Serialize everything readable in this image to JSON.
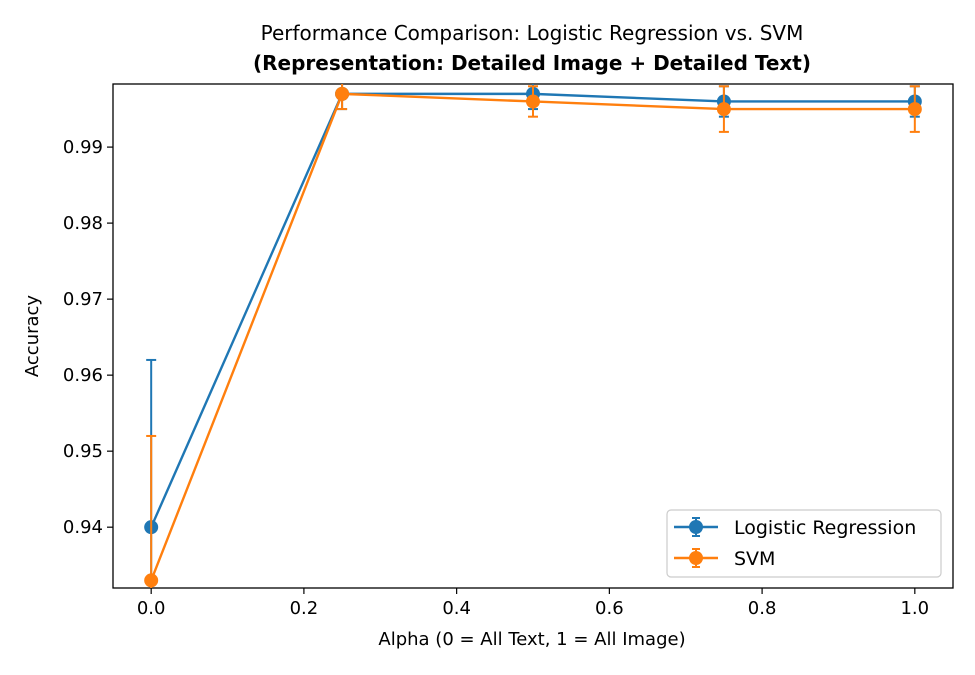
{
  "chart_data": {
    "type": "line",
    "title": "Performance Comparison: Logistic Regression vs. SVM",
    "subtitle": "(Representation: Detailed Image + Detailed Text)",
    "xlabel": "Alpha (0 = All Text, 1 = All Image)",
    "ylabel": "Accuracy",
    "xlim": [
      -0.05,
      1.05
    ],
    "ylim": [
      0.932,
      0.9983
    ],
    "x_ticks": [
      0.0,
      0.2,
      0.4,
      0.6,
      0.8,
      1.0
    ],
    "x_tick_labels": [
      "0.0",
      "0.2",
      "0.4",
      "0.6",
      "0.8",
      "1.0"
    ],
    "y_ticks": [
      0.94,
      0.95,
      0.96,
      0.97,
      0.98,
      0.99
    ],
    "y_tick_labels": [
      "0.94",
      "0.95",
      "0.96",
      "0.97",
      "0.98",
      "0.99"
    ],
    "grid": false,
    "legend_position": "bottom-right",
    "x": [
      0.0,
      0.25,
      0.5,
      0.75,
      1.0
    ],
    "series": [
      {
        "name": "Logistic Regression",
        "color": "#1f77b4",
        "values": [
          0.94,
          0.997,
          0.997,
          0.996,
          0.996
        ],
        "errors": [
          0.022,
          0.002,
          0.002,
          0.002,
          0.002
        ]
      },
      {
        "name": "SVM",
        "color": "#ff7f0e",
        "values": [
          0.933,
          0.997,
          0.996,
          0.995,
          0.995
        ],
        "errors": [
          0.019,
          0.002,
          0.002,
          0.003,
          0.003
        ]
      }
    ]
  }
}
